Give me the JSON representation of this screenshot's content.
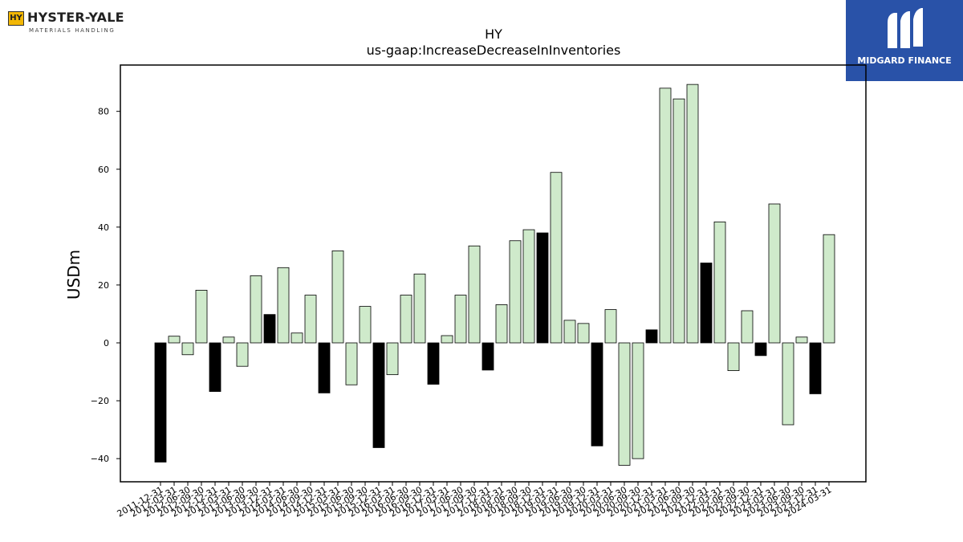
{
  "logos": {
    "left": {
      "mark": "HY",
      "name": "HYSTER-YALE",
      "tagline": "MATERIALS HANDLING"
    },
    "right": {
      "name": "MIDGARD FINANCE",
      "bg_color": "#2952a8"
    }
  },
  "chart_data": {
    "type": "bar",
    "title": "HY",
    "subtitle": "us-gaap:IncreaseDecreaseInInventories",
    "ylabel": "USDm",
    "xlabel": "",
    "ylim": [
      -48,
      96
    ],
    "yticks": [
      -40,
      -20,
      0,
      20,
      40,
      60,
      80
    ],
    "colors": {
      "q4": "#000000",
      "other": "#cfeacb",
      "edge": "#000000"
    },
    "categories": [
      "2011-12-31",
      "2012-03-31",
      "2012-06-30",
      "2012-09-30",
      "2012-12-31",
      "2013-03-31",
      "2013-06-30",
      "2013-09-30",
      "2013-12-31",
      "2014-03-31",
      "2014-06-30",
      "2014-09-30",
      "2014-12-31",
      "2015-03-31",
      "2015-06-30",
      "2015-09-30",
      "2015-12-31",
      "2016-03-31",
      "2016-06-30",
      "2016-09-30",
      "2016-12-31",
      "2017-03-31",
      "2017-06-30",
      "2017-09-30",
      "2017-12-31",
      "2018-03-31",
      "2018-06-30",
      "2018-09-30",
      "2018-12-31",
      "2019-03-31",
      "2019-06-30",
      "2019-09-30",
      "2019-12-31",
      "2020-03-31",
      "2020-06-30",
      "2020-09-30",
      "2020-12-31",
      "2021-03-31",
      "2021-06-30",
      "2021-09-30",
      "2021-12-31",
      "2022-03-31",
      "2022-06-30",
      "2022-09-30",
      "2022-12-31",
      "2023-03-31",
      "2023-06-30",
      "2023-09-30",
      "2023-12-31",
      "2024-03-31"
    ],
    "values": [
      -41.2,
      2.3,
      -4.1,
      18.2,
      -16.8,
      2.0,
      -8.1,
      23.2,
      9.8,
      26.0,
      3.4,
      16.5,
      -17.3,
      31.8,
      -14.5,
      12.6,
      -36.2,
      -11.0,
      16.5,
      23.8,
      -14.3,
      2.5,
      16.5,
      33.5,
      -9.4,
      13.2,
      35.3,
      39.1,
      38.0,
      58.9,
      7.8,
      6.7,
      -35.6,
      11.5,
      -42.3,
      -40.0,
      4.5,
      88.0,
      84.3,
      89.3,
      27.6,
      41.8,
      -9.6,
      11.1,
      -4.4,
      48.0,
      -28.3,
      2.0,
      -17.6,
      37.4
    ]
  }
}
